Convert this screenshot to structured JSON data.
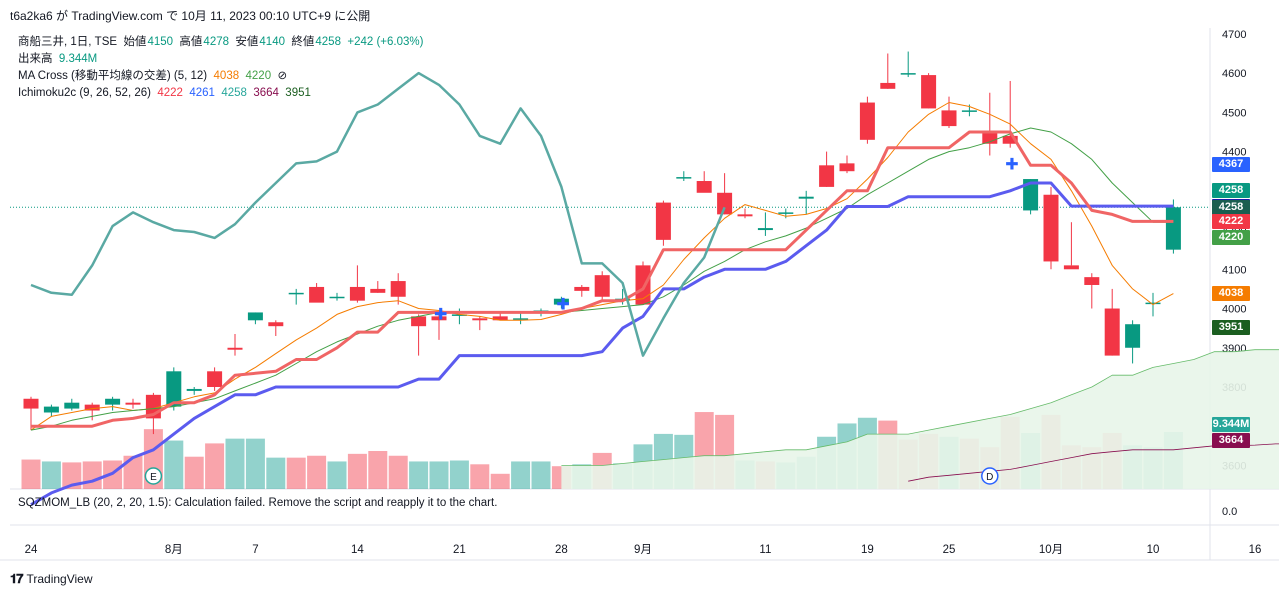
{
  "caption": "t6a2ka6 が TradingView.com で 10月 11, 2023 00:10 UTC+9 に公開",
  "legend": {
    "symbol": "商船三井, 1日, TSE",
    "open_label": "始値",
    "open": "4150",
    "high_label": "高値",
    "high": "4278",
    "low_label": "安値",
    "low": "4140",
    "close_label": "終値",
    "close": "4258",
    "change": "+242 (+6.03%)",
    "volume_label": "出来高",
    "volume": "9.344M",
    "ma_label": "MA Cross (移動平均線の交差) (5, 12)",
    "ma_fast": "4038",
    "ma_slow": "4220",
    "ma_icon": "⊘",
    "ichi_label": "Ichimoku2c (9, 26, 52, 26)",
    "ichi_v1": "4222",
    "ichi_v2": "4261",
    "ichi_v3": "4258",
    "ichi_v4": "3664",
    "ichi_v5": "3951"
  },
  "sqz_text": "SQZMOM_LB (20, 2, 20, 1.5): Calculation failed. Remove the script and reapply it to the chart.",
  "brand": "TradingView",
  "colors": {
    "up": "#089981",
    "down": "#f23645",
    "ma_fast": "#f57c00",
    "ma_slow": "#43a047",
    "tenkan": "#f23645",
    "kijun": "#2962ff",
    "chikou": "#26a69a",
    "cloud": "#e8f5e9"
  },
  "badges": [
    {
      "text": "4367",
      "color": "#2962ff",
      "price": 4367
    },
    {
      "text": "4261",
      "color": "#1a1aa8",
      "price": 4261
    },
    {
      "text": "4258",
      "color": "#089981",
      "price": 4300
    },
    {
      "text": "4258",
      "color": "#1b5e50",
      "price": 4258
    },
    {
      "text": "4222",
      "color": "#f23645",
      "price": 4222
    },
    {
      "text": "4220",
      "color": "#43a047",
      "price": 4182
    },
    {
      "text": "4038",
      "color": "#f57c00",
      "price": 4038
    },
    {
      "text": "3951",
      "color": "#1b5e20",
      "price": 3951
    },
    {
      "text": "9.344M",
      "color": "#26a69a",
      "price": 3705
    },
    {
      "text": "3664",
      "color": "#880e4f",
      "price": 3664
    }
  ],
  "chart_data": {
    "type": "candlestick",
    "y_ticks": [
      3600,
      3700,
      3800,
      3900,
      4000,
      4100,
      4200,
      4300,
      4400,
      4500,
      4600,
      4700
    ],
    "ylim": [
      3540,
      4715
    ],
    "sqz_tick": "0.0",
    "x_tick_labels": [
      {
        "label": "24",
        "x": 0
      },
      {
        "label": "8月",
        "x": 7
      },
      {
        "label": "7",
        "x": 11
      },
      {
        "label": "14",
        "x": 16
      },
      {
        "label": "21",
        "x": 21
      },
      {
        "label": "28",
        "x": 26
      },
      {
        "label": "9月",
        "x": 30
      },
      {
        "label": "11",
        "x": 36
      },
      {
        "label": "19",
        "x": 41
      },
      {
        "label": "25",
        "x": 45
      },
      {
        "label": "10月",
        "x": 50
      },
      {
        "label": "10",
        "x": 55
      },
      {
        "label": "16",
        "x": 60
      }
    ],
    "ohlc": [
      [
        3770,
        3775,
        3690,
        3745
      ],
      [
        3735,
        3755,
        3725,
        3750
      ],
      [
        3745,
        3770,
        3740,
        3760
      ],
      [
        3755,
        3760,
        3715,
        3740
      ],
      [
        3755,
        3775,
        3740,
        3770
      ],
      [
        3760,
        3770,
        3745,
        3755
      ],
      [
        3780,
        3785,
        3680,
        3720
      ],
      [
        3750,
        3850,
        3740,
        3840
      ],
      [
        3790,
        3800,
        3780,
        3795
      ],
      [
        3840,
        3850,
        3790,
        3800
      ],
      [
        3900,
        3935,
        3880,
        3895
      ],
      [
        3970,
        3990,
        3960,
        3990
      ],
      [
        3965,
        3970,
        3930,
        3955
      ],
      [
        4040,
        4050,
        4010,
        4040
      ],
      [
        4055,
        4065,
        4020,
        4015
      ],
      [
        4030,
        4040,
        4020,
        4030
      ],
      [
        4055,
        4110,
        4015,
        4020
      ],
      [
        4050,
        4070,
        4040,
        4040
      ],
      [
        4070,
        4090,
        4010,
        4030
      ],
      [
        3980,
        3985,
        3880,
        3955
      ],
      [
        3980,
        3985,
        3920,
        3970
      ],
      [
        3985,
        4000,
        3960,
        3985
      ],
      [
        3975,
        3980,
        3945,
        3970
      ],
      [
        3980,
        3990,
        3970,
        3970
      ],
      [
        3975,
        3990,
        3960,
        3975
      ],
      [
        3995,
        4000,
        3980,
        3995
      ],
      [
        4010,
        4030,
        4000,
        4025
      ],
      [
        4055,
        4060,
        4030,
        4045
      ],
      [
        4085,
        4095,
        4020,
        4030
      ],
      [
        4020,
        4050,
        4010,
        4025
      ],
      [
        4110,
        4120,
        4010,
        4010
      ],
      [
        4270,
        4275,
        4160,
        4175
      ],
      [
        4335,
        4350,
        4325,
        4335
      ],
      [
        4325,
        4350,
        4300,
        4295
      ],
      [
        4295,
        4345,
        4240,
        4240
      ],
      [
        4240,
        4255,
        4230,
        4235
      ],
      [
        4200,
        4245,
        4185,
        4205
      ],
      [
        4245,
        4255,
        4230,
        4245
      ],
      [
        4280,
        4300,
        4240,
        4285
      ],
      [
        4365,
        4400,
        4310,
        4310
      ],
      [
        4370,
        4390,
        4345,
        4350
      ],
      [
        4525,
        4540,
        4420,
        4430
      ],
      [
        4575,
        4650,
        4560,
        4560
      ],
      [
        4600,
        4655,
        4590,
        4600
      ],
      [
        4595,
        4600,
        4510,
        4510
      ],
      [
        4505,
        4540,
        4460,
        4465
      ],
      [
        4505,
        4520,
        4490,
        4505
      ],
      [
        4450,
        4550,
        4390,
        4420
      ],
      [
        4440,
        4580,
        4410,
        4420
      ],
      [
        4250,
        4330,
        4240,
        4330
      ],
      [
        4290,
        4310,
        4100,
        4120
      ],
      [
        4110,
        4220,
        4110,
        4100
      ],
      [
        4080,
        4090,
        4000,
        4060
      ],
      [
        4000,
        4050,
        3880,
        3880
      ],
      [
        3900,
        3970,
        3860,
        3960
      ],
      [
        4015,
        4040,
        3980,
        4015
      ],
      [
        4150,
        4278,
        4140,
        4258
      ]
    ],
    "volume_scale": [
      0,
      0,
      100
    ],
    "volume": [
      [
        31,
        0
      ],
      [
        29,
        1
      ],
      [
        28,
        0
      ],
      [
        29,
        0
      ],
      [
        30,
        0
      ],
      [
        35,
        0
      ],
      [
        63,
        0
      ],
      [
        51,
        1
      ],
      [
        34,
        0
      ],
      [
        48,
        0
      ],
      [
        53,
        1
      ],
      [
        53,
        1
      ],
      [
        33,
        1
      ],
      [
        33,
        0
      ],
      [
        35,
        0
      ],
      [
        29,
        1
      ],
      [
        37,
        0
      ],
      [
        40,
        0
      ],
      [
        35,
        0
      ],
      [
        29,
        1
      ],
      [
        29,
        1
      ],
      [
        30,
        1
      ],
      [
        26,
        0
      ],
      [
        16,
        0
      ],
      [
        29,
        1
      ],
      [
        29,
        1
      ],
      [
        24,
        0
      ],
      [
        26,
        1
      ],
      [
        38,
        0
      ],
      [
        27,
        1
      ],
      [
        47,
        1
      ],
      [
        58,
        1
      ],
      [
        57,
        1
      ],
      [
        81,
        0
      ],
      [
        78,
        0
      ],
      [
        30,
        1
      ],
      [
        29,
        0
      ],
      [
        28,
        1
      ],
      [
        34,
        1
      ],
      [
        55,
        1
      ],
      [
        69,
        1
      ],
      [
        75,
        1
      ],
      [
        72,
        0
      ],
      [
        52,
        0
      ],
      [
        58,
        0
      ],
      [
        55,
        1
      ],
      [
        53,
        0
      ],
      [
        44,
        0
      ],
      [
        76,
        0
      ],
      [
        59,
        1
      ],
      [
        78,
        0
      ],
      [
        46,
        0
      ],
      [
        44,
        0
      ],
      [
        59,
        0
      ],
      [
        46,
        1
      ],
      [
        44,
        1
      ],
      [
        60,
        1
      ]
    ],
    "series": [
      {
        "name": "MA Cross 5",
        "values": [
          3690,
          3725,
          3735,
          3745,
          3750,
          3740,
          3745,
          3760,
          3775,
          3785,
          3820,
          3850,
          3885,
          3920,
          3950,
          3985,
          4005,
          4015,
          4020,
          4000,
          3995,
          3985,
          3980,
          3970,
          3970,
          3972,
          3985,
          4000,
          4010,
          4020,
          4025,
          4060,
          4125,
          4180,
          4230,
          4265,
          4250,
          4235,
          4240,
          4255,
          4280,
          4330,
          4385,
          4450,
          4495,
          4525,
          4515,
          4495,
          4470,
          4420,
          4380,
          4300,
          4210,
          4110,
          4050,
          4010,
          4038
        ]
      },
      {
        "name": "MA Cross 12",
        "values": [
          3690,
          3700,
          3715,
          3725,
          3735,
          3740,
          3745,
          3750,
          3760,
          3770,
          3790,
          3810,
          3830,
          3860,
          3890,
          3915,
          3935,
          3955,
          3970,
          3980,
          3990,
          3990,
          3990,
          3990,
          3990,
          3990,
          3990,
          3995,
          4000,
          4005,
          4010,
          4030,
          4060,
          4095,
          4120,
          4150,
          4170,
          4185,
          4205,
          4230,
          4255,
          4290,
          4320,
          4350,
          4380,
          4400,
          4410,
          4425,
          4445,
          4460,
          4450,
          4420,
          4380,
          4320,
          4270,
          4220,
          4220
        ]
      },
      {
        "name": "Tenkan",
        "values": [
          3700,
          3700,
          3700,
          3700,
          3715,
          3720,
          3730,
          3760,
          3760,
          3780,
          3830,
          3835,
          3840,
          3870,
          3870,
          3900,
          3940,
          3940,
          3990,
          3990,
          3990,
          3990,
          3990,
          3990,
          3990,
          3990,
          3990,
          4000,
          4020,
          4020,
          4050,
          4150,
          4150,
          4150,
          4150,
          4150,
          4150,
          4150,
          4200,
          4250,
          4300,
          4300,
          4410,
          4410,
          4410,
          4410,
          4450,
          4450,
          4450,
          4365,
          4365,
          4320,
          4250,
          4240,
          4222,
          4222,
          4222
        ]
      },
      {
        "name": "Kijun",
        "values": [
          3500,
          3530,
          3550,
          3560,
          3580,
          3620,
          3640,
          3680,
          3720,
          3750,
          3780,
          3780,
          3800,
          3800,
          3800,
          3800,
          3800,
          3800,
          3800,
          3820,
          3820,
          3880,
          3880,
          3880,
          3880,
          3880,
          3880,
          3880,
          3890,
          3950,
          3980,
          4050,
          4050,
          4080,
          4100,
          4100,
          4100,
          4120,
          4160,
          4200,
          4260,
          4260,
          4260,
          4285,
          4285,
          4285,
          4285,
          4285,
          4300,
          4320,
          4320,
          4261,
          4261,
          4261,
          4261,
          4261,
          4261
        ]
      },
      {
        "name": "Chikou",
        "values": [
          4060,
          4040,
          4035,
          4110,
          4210,
          4245,
          4220,
          4200,
          4195,
          4180,
          4215,
          4270,
          4320,
          4370,
          4375,
          4400,
          4500,
          4520,
          4560,
          4600,
          4570,
          4520,
          4440,
          4420,
          4510,
          4440,
          4310,
          4115,
          4115,
          4065,
          3880,
          3975,
          4065,
          4130,
          4258
        ]
      },
      {
        "name": "Senkou A",
        "values": [
          3600,
          3600,
          3600,
          3605,
          3610,
          3615,
          3620,
          3625,
          3625,
          3630,
          3635,
          3640,
          3640,
          3650,
          3660,
          3680,
          3680,
          3680,
          3690,
          3700,
          3710,
          3720,
          3730,
          3745,
          3760,
          3780,
          3800,
          3830,
          3830,
          3850,
          3860,
          3870,
          3890,
          3890,
          3895,
          3895,
          3895,
          3900,
          3905,
          3920,
          3935,
          3940,
          3950,
          3950,
          3951
        ]
      },
      {
        "name": "Senkou B",
        "values": [
          3560,
          3570,
          3575,
          3580,
          3585,
          3590,
          3600,
          3610,
          3620,
          3630,
          3635,
          3640,
          3640,
          3640,
          3645,
          3650,
          3650,
          3652,
          3655,
          3655,
          3655,
          3655,
          3655,
          3658,
          3660,
          3660,
          3662,
          3664
        ]
      }
    ]
  }
}
